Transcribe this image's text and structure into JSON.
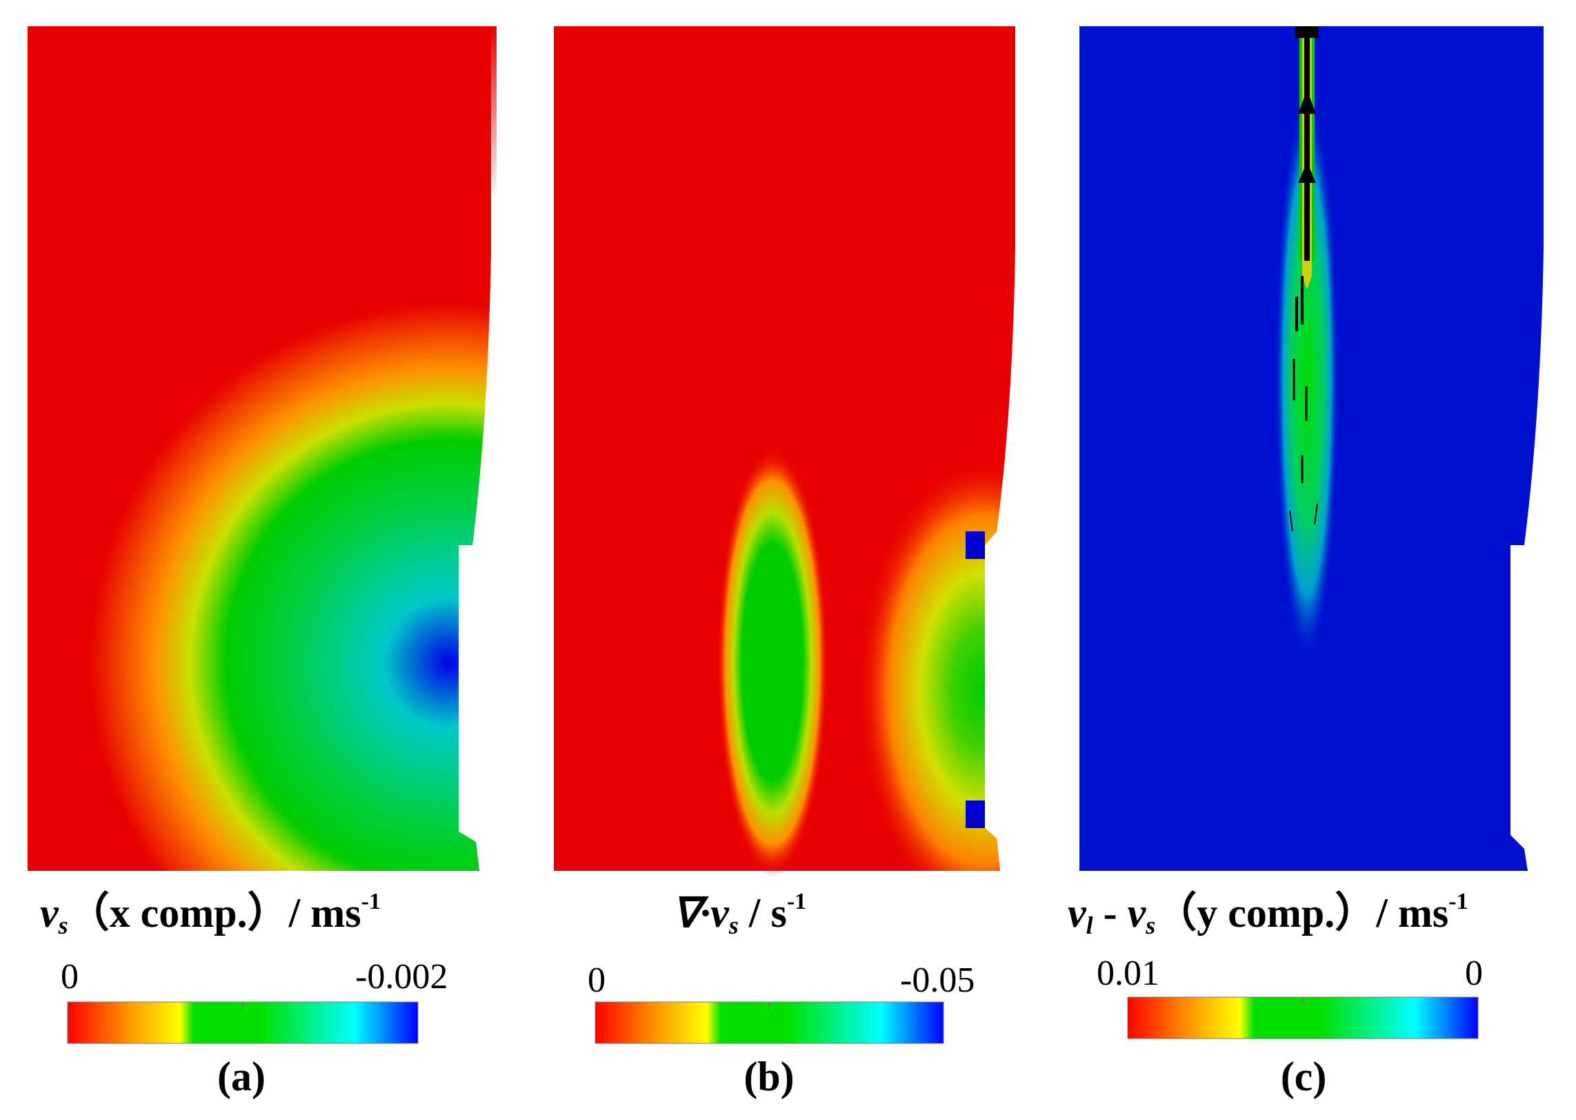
{
  "panels": [
    {
      "caption": "(a)",
      "title": {
        "symbol": "v",
        "subscript": "s",
        "mid": "（x comp.）/ ms",
        "superscript": "-1"
      },
      "colorbar": {
        "min_label": "0",
        "max_label": "-0.002",
        "colors": [
          "#ff0000",
          "#ffff00",
          "#00e000",
          "#00ffff",
          "#0000ff"
        ]
      }
    },
    {
      "caption": "(b)",
      "title": {
        "symbol": "∇·v",
        "subscript": "s",
        "mid": " / s",
        "superscript": "-1"
      },
      "colorbar": {
        "min_label": "0",
        "max_label": "-0.05",
        "colors": [
          "#ff0000",
          "#ffff00",
          "#00e000",
          "#00ffff",
          "#0000ff"
        ]
      }
    },
    {
      "caption": "(c)",
      "title": {
        "symbol": "v",
        "subscript": "l",
        "mid2": " - ",
        "symbol2": "v",
        "subscript2": "s",
        "mid": "（y comp.）/ ms",
        "superscript": "-1"
      },
      "colorbar": {
        "min_label": "0.01",
        "max_label": "0",
        "colors": [
          "#ff0000",
          "#ffff00",
          "#00e000",
          "#00ffff",
          "#0000ff"
        ]
      }
    }
  ]
}
